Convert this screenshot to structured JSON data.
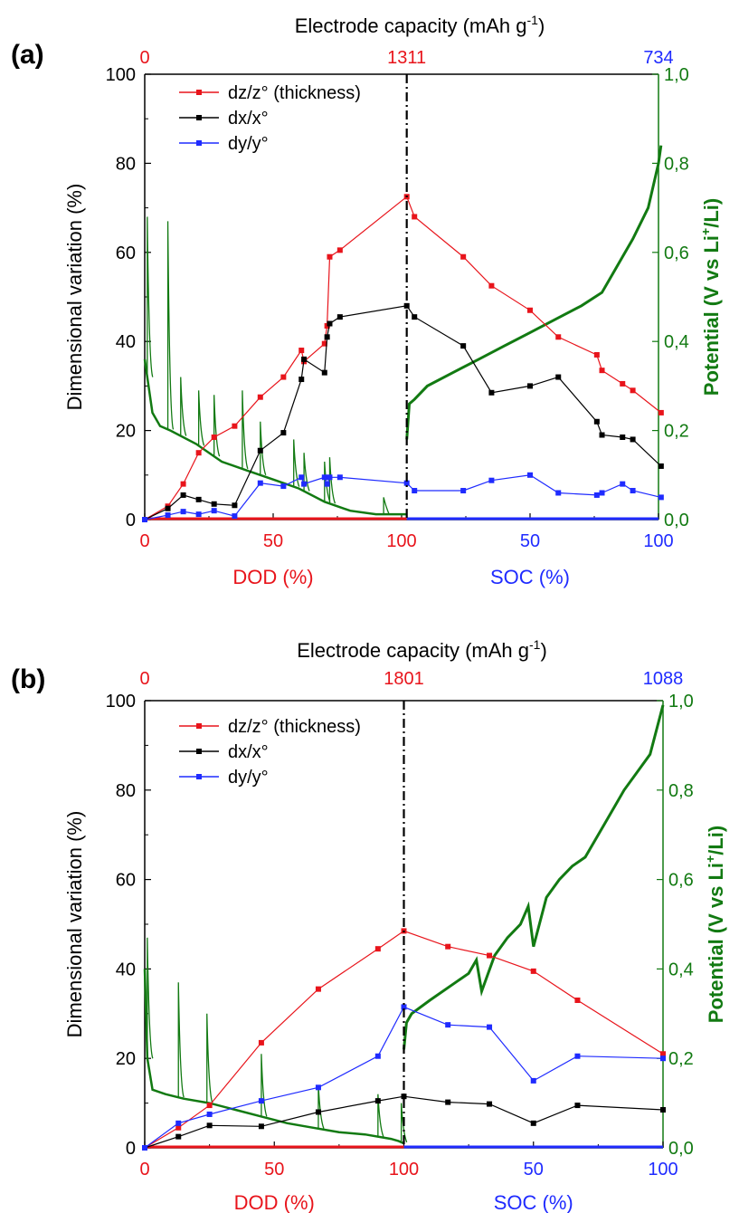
{
  "colors": {
    "dz": "#e8141b",
    "dx": "#000000",
    "dy": "#1f2bff",
    "potential": "#127a12",
    "axis": "#000000"
  },
  "chart_data": [
    {
      "type": "line",
      "panel": "(a)",
      "title": "Electrode capacity (mAh g-1)",
      "top_axis": {
        "left": "0",
        "mid": "1311",
        "right": "734"
      },
      "xlabel_left": "DOD (%)",
      "xlabel_right": "SOC (%)",
      "x_ticks_left": [
        "0",
        "50",
        "100"
      ],
      "x_ticks_right": [
        "50",
        "100"
      ],
      "ylabel": "Dimensional variation (%)",
      "ylim": [
        0,
        100
      ],
      "y_ticks": [
        "0",
        "20",
        "40",
        "60",
        "80",
        "100"
      ],
      "y2label": "Potential (V vs Li+/Li)",
      "y2lim": [
        0,
        1
      ],
      "y2_ticks": [
        "0,0",
        "0,2",
        "0,4",
        "0,6",
        "0,8",
        "1,0"
      ],
      "legend_position": "top-left",
      "series": [
        {
          "name": "dz/z° (thickness)",
          "color_key": "dz",
          "x": [
            0,
            9,
            15,
            21,
            27,
            35,
            45,
            54,
            61,
            62,
            70,
            71,
            72,
            76,
            102,
            105,
            124,
            135,
            150,
            161,
            176,
            178,
            186,
            190,
            201
          ],
          "values": [
            0,
            3,
            8,
            15,
            18.5,
            21,
            27.5,
            32,
            38,
            35.5,
            39.5,
            43.5,
            59,
            60.5,
            72.5,
            68,
            59,
            52.5,
            47,
            41,
            37,
            33.5,
            30.5,
            29,
            24
          ]
        },
        {
          "name": "dx/x°",
          "color_key": "dx",
          "x": [
            0,
            9,
            15,
            21,
            27,
            35,
            45,
            54,
            61,
            62,
            70,
            71,
            72,
            76,
            102,
            105,
            124,
            135,
            150,
            161,
            176,
            178,
            186,
            190,
            201
          ],
          "values": [
            0,
            2.5,
            5.5,
            4.5,
            3.5,
            3.2,
            15.5,
            19.5,
            31.5,
            36,
            33,
            41,
            44,
            45.5,
            48,
            45.5,
            39,
            28.5,
            30,
            32,
            22,
            19,
            18.5,
            18,
            12
          ]
        },
        {
          "name": "dy/y°",
          "color_key": "dy",
          "x": [
            0,
            9,
            15,
            21,
            27,
            35,
            45,
            54,
            61,
            62,
            70,
            71,
            72,
            76,
            102,
            105,
            124,
            135,
            150,
            161,
            176,
            178,
            186,
            190,
            201
          ],
          "values": [
            0,
            1,
            1.8,
            1.2,
            2,
            0.8,
            8.2,
            7.5,
            9.5,
            8,
            9.5,
            8,
            9.5,
            9.5,
            8.2,
            6.5,
            6.5,
            8.8,
            10,
            6,
            5.5,
            6,
            8,
            6.5,
            5
          ]
        }
      ],
      "potential": {
        "name": "Potential",
        "color_key": "potential",
        "discharge_x": [
          0,
          3,
          6,
          10,
          20,
          30,
          40,
          50,
          60,
          70,
          80,
          90,
          100,
          102
        ],
        "discharge_v": [
          0.36,
          0.24,
          0.21,
          0.2,
          0.17,
          0.13,
          0.11,
          0.09,
          0.07,
          0.04,
          0.02,
          0.012,
          0.012,
          0.012
        ],
        "spikes_x": [
          1,
          9,
          14,
          21,
          27,
          38,
          45,
          58,
          62,
          70,
          72,
          93
        ],
        "spikes_v": [
          0.68,
          0.67,
          0.32,
          0.29,
          0.28,
          0.29,
          0.22,
          0.18,
          0.15,
          0.13,
          0.14,
          0.05
        ],
        "charge_x": [
          102,
          103,
          105,
          110,
          120,
          130,
          140,
          150,
          160,
          170,
          178,
          182,
          186,
          190,
          196,
          200,
          201
        ],
        "charge_v": [
          0.18,
          0.26,
          0.27,
          0.3,
          0.33,
          0.36,
          0.39,
          0.42,
          0.45,
          0.48,
          0.51,
          0.55,
          0.59,
          0.63,
          0.7,
          0.8,
          0.84
        ]
      },
      "divider_x": 102
    },
    {
      "type": "line",
      "panel": "(b)",
      "title": "Electrode capacity (mAh g-1)",
      "top_axis": {
        "left": "0",
        "mid": "1801",
        "right": "1088"
      },
      "xlabel_left": "DOD (%)",
      "xlabel_right": "SOC (%)",
      "x_ticks_left": [
        "0",
        "50",
        "100"
      ],
      "x_ticks_right": [
        "50",
        "100"
      ],
      "ylabel": "Dimensional variation (%)",
      "ylim": [
        0,
        100
      ],
      "y_ticks": [
        "0",
        "20",
        "40",
        "60",
        "80",
        "100"
      ],
      "y2label": "Potential (V vs Li+/Li)",
      "y2lim": [
        0,
        1
      ],
      "y2_ticks": [
        "0,0",
        "0,2",
        "0,4",
        "0,6",
        "0,8",
        "1,0"
      ],
      "legend_position": "top-left",
      "series": [
        {
          "name": "dz/z° (thickness)",
          "color_key": "dz",
          "x": [
            0,
            13,
            25,
            45,
            67,
            90,
            100,
            117,
            133,
            150,
            167,
            200
          ],
          "values": [
            0,
            4.5,
            9.5,
            23.5,
            35.5,
            44.5,
            48.5,
            45,
            43,
            39.5,
            33,
            21
          ]
        },
        {
          "name": "dx/x°",
          "color_key": "dx",
          "x": [
            0,
            13,
            25,
            45,
            67,
            90,
            100,
            117,
            133,
            150,
            167,
            200
          ],
          "values": [
            0,
            2.5,
            5,
            4.8,
            8,
            10.5,
            11.5,
            10.2,
            9.8,
            5.5,
            9.5,
            8.5
          ]
        },
        {
          "name": "dy/y°",
          "color_key": "dy",
          "x": [
            0,
            13,
            25,
            45,
            67,
            90,
            100,
            117,
            133,
            150,
            167,
            200
          ],
          "values": [
            0,
            5.5,
            7.5,
            10.5,
            13.5,
            20.5,
            31.5,
            27.5,
            27,
            15,
            20.5,
            20
          ]
        }
      ],
      "potential": {
        "name": "Potential",
        "color_key": "potential",
        "discharge_x": [
          0,
          1,
          3,
          8,
          15,
          25,
          35,
          45,
          55,
          65,
          75,
          85,
          95,
          98,
          100
        ],
        "discharge_v": [
          0.4,
          0.2,
          0.13,
          0.12,
          0.11,
          0.1,
          0.085,
          0.07,
          0.055,
          0.045,
          0.035,
          0.03,
          0.02,
          0.015,
          0.01
        ],
        "spikes_x": [
          1,
          13,
          24,
          45,
          67,
          90,
          99
        ],
        "spikes_v": [
          0.47,
          0.37,
          0.3,
          0.21,
          0.14,
          0.12,
          0.1
        ],
        "charge_x": [
          100,
          101,
          103,
          110,
          120,
          125,
          128,
          130,
          135,
          140,
          145,
          148,
          150,
          155,
          160,
          165,
          170,
          178,
          185,
          190,
          195,
          200
        ],
        "charge_v": [
          0.22,
          0.28,
          0.3,
          0.33,
          0.37,
          0.39,
          0.42,
          0.35,
          0.43,
          0.47,
          0.5,
          0.54,
          0.45,
          0.56,
          0.6,
          0.63,
          0.65,
          0.73,
          0.8,
          0.84,
          0.88,
          0.99
        ]
      },
      "divider_x": 100
    }
  ]
}
